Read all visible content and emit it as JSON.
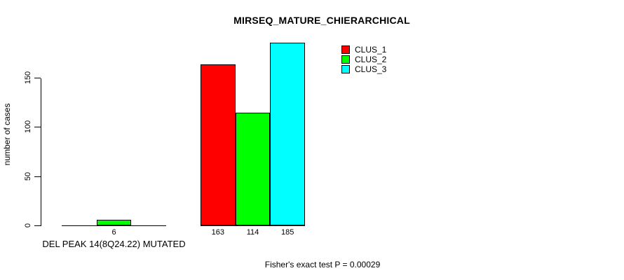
{
  "chart_data": {
    "type": "bar",
    "title": "MIRSEQ_MATURE_CHIERARCHICAL",
    "ylabel": "number of cases",
    "xlabel": "",
    "ylim": [
      0,
      150
    ],
    "yticks": [
      0,
      50,
      100,
      150
    ],
    "grid": false,
    "legend_position": "top-right",
    "categories": [
      "DEL PEAK 14(8Q24.22) MUTATED",
      ""
    ],
    "series": [
      {
        "name": "CLUS_1",
        "color": "#ff0000",
        "values": [
          0,
          163
        ]
      },
      {
        "name": "CLUS_2",
        "color": "#00ff00",
        "values": [
          6,
          114
        ]
      },
      {
        "name": "CLUS_3",
        "color": "#00ffff",
        "values": [
          0,
          185
        ]
      }
    ],
    "annotation": "Fisher's exact test P = 0.00029",
    "colors": {
      "background": "#ffffff",
      "axis": "#000000",
      "text": "#000000",
      "bar_border": "#000000"
    }
  }
}
